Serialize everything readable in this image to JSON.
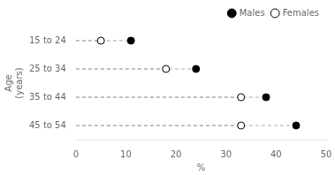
{
  "chart_data": {
    "type": "dot",
    "categories": [
      "15 to 24",
      "25 to 34",
      "35 to 44",
      "45 to 54"
    ],
    "series": [
      {
        "name": "Males",
        "color": "black",
        "marker": "circle",
        "values": [
          11,
          24,
          38,
          44
        ]
      },
      {
        "name": "Females",
        "color": "white",
        "marker": "circle",
        "values": [
          5,
          18,
          33,
          33
        ]
      }
    ],
    "xlabel": "%",
    "ylabel": "Age\n(years)",
    "xlim": [
      0,
      50
    ],
    "xticks": [
      0,
      10,
      20,
      30,
      40,
      50
    ],
    "color": "#aaaaaa",
    "line_style": "dashed",
    "grid": false,
    "legend": "upper right"
  }
}
